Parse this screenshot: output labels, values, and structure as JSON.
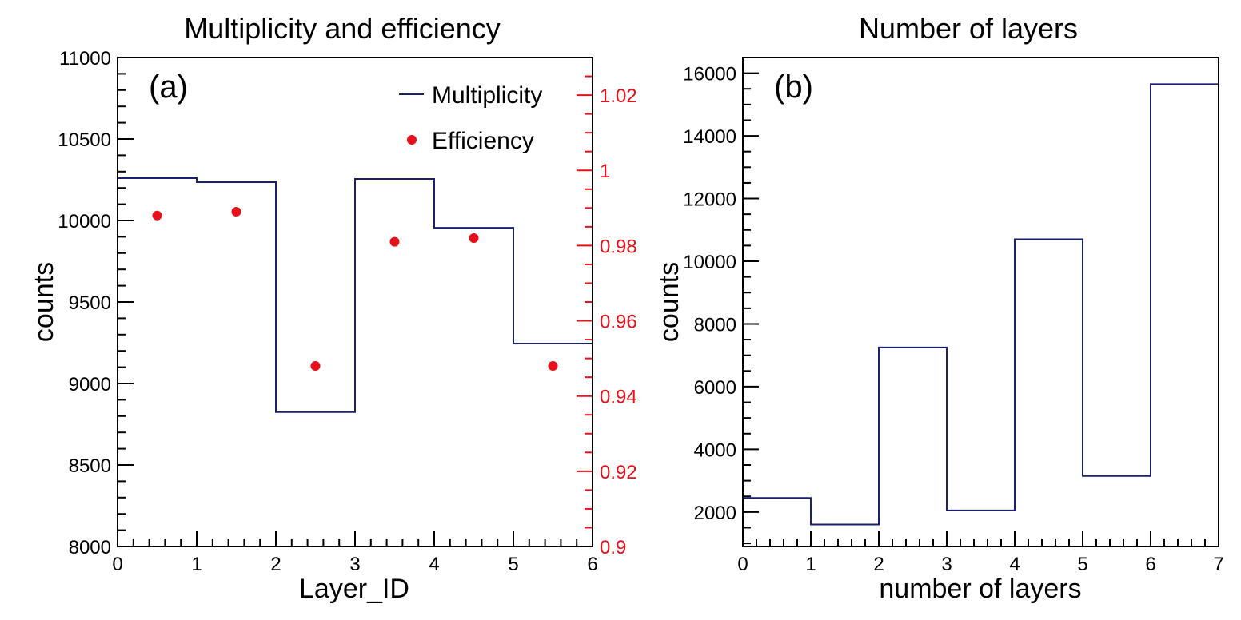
{
  "colors": {
    "histogram": "#1a1f6e",
    "efficiency": "#e8101a",
    "axis": "#000000",
    "right_axis": "#e8101a"
  },
  "chart_data": [
    {
      "id": "a",
      "type": "step",
      "title": "Multiplicity and efficiency",
      "panel_label": "(a)",
      "xlabel": "Layer_ID",
      "ylabel": "counts",
      "xlim": [
        0,
        6
      ],
      "ylim": [
        8000,
        11000
      ],
      "x_ticks": [
        0,
        1,
        2,
        3,
        4,
        5,
        6
      ],
      "x_tick_labels": [
        "0",
        "1",
        "2",
        "3",
        "4",
        "5",
        "6"
      ],
      "y_ticks": [
        8000,
        8500,
        9000,
        9500,
        10000,
        10500,
        11000
      ],
      "y_tick_labels": [
        "8000",
        "8500",
        "9000",
        "9500",
        "10000",
        "10500",
        "11000"
      ],
      "x_minor_per_major": 5,
      "y_minor_per_major": 5,
      "right_axis": {
        "ylim": [
          0.9,
          1.03
        ],
        "ticks": [
          0.9,
          0.92,
          0.94,
          0.96,
          0.98,
          1.0,
          1.02
        ],
        "tick_labels": [
          "0.9",
          "0.92",
          "0.94",
          "0.96",
          "0.98",
          "1",
          "1.02"
        ],
        "minor_per_major": 4
      },
      "legend_position": "top-right",
      "series": [
        {
          "name": "Multiplicity",
          "kind": "step",
          "bin_edges": [
            0,
            1,
            2,
            3,
            4,
            5,
            6
          ],
          "values": [
            10260,
            10235,
            8825,
            10255,
            9955,
            9245
          ]
        },
        {
          "name": "Efficiency",
          "kind": "points",
          "axis": "right",
          "x": [
            0.5,
            1.5,
            2.5,
            3.5,
            4.5,
            5.5
          ],
          "values": [
            0.988,
            0.989,
            0.948,
            0.981,
            0.982,
            0.948
          ]
        }
      ]
    },
    {
      "id": "b",
      "type": "step",
      "title": "Number of layers",
      "panel_label": "(b)",
      "xlabel": "number of layers",
      "ylabel": "counts",
      "xlim": [
        0,
        7
      ],
      "ylim": [
        900,
        16500
      ],
      "x_ticks": [
        0,
        1,
        2,
        3,
        4,
        5,
        6,
        7
      ],
      "x_tick_labels": [
        "0",
        "1",
        "2",
        "3",
        "4",
        "5",
        "6",
        "7"
      ],
      "y_ticks": [
        2000,
        4000,
        6000,
        8000,
        10000,
        12000,
        14000,
        16000
      ],
      "y_tick_labels": [
        "2000",
        "4000",
        "6000",
        "8000",
        "10000",
        "12000",
        "14000",
        "16000"
      ],
      "x_minor_per_major": 5,
      "y_minor_per_major": 4,
      "series": [
        {
          "name": "Number of layers",
          "kind": "step",
          "bin_edges": [
            0,
            1,
            2,
            3,
            4,
            5,
            6,
            7
          ],
          "values": [
            2450,
            1600,
            7250,
            2050,
            10700,
            3150,
            15650
          ]
        }
      ]
    }
  ]
}
